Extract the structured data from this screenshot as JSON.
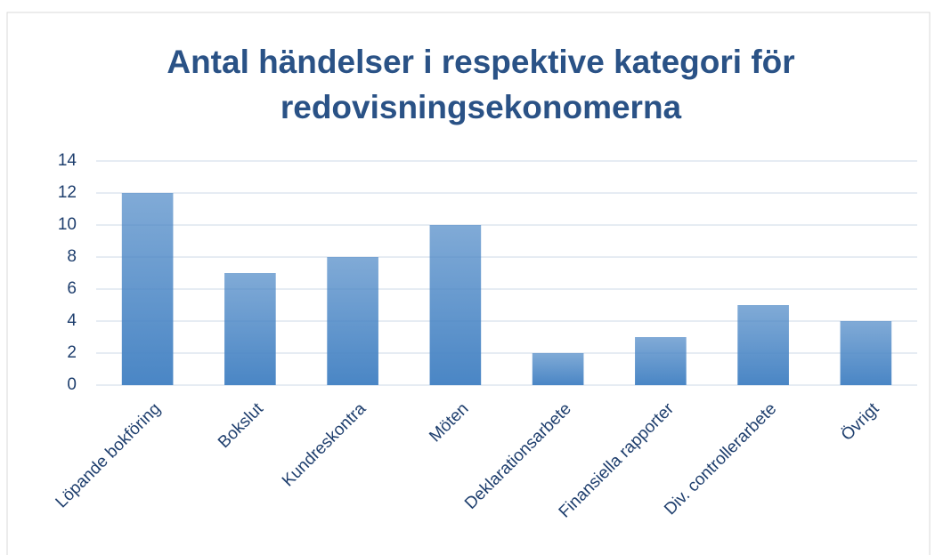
{
  "chart_data": {
    "type": "bar",
    "title_lines": [
      "Antal händelser i respektive kategori för",
      "redovisningsekonomerna"
    ],
    "categories": [
      "Löpande bokföring",
      "Bokslut",
      "Kundreskontra",
      "Möten",
      "Deklarationsarbete",
      "Finansiella rapporter",
      "Div. controllerarbete",
      "Övrigt"
    ],
    "values": [
      12,
      7,
      8,
      10,
      2,
      3,
      5,
      4
    ],
    "color": "#4a86c5",
    "ylim": [
      0,
      14
    ],
    "yticks": [
      0,
      2,
      4,
      6,
      8,
      10,
      12,
      14
    ],
    "grid": true
  }
}
